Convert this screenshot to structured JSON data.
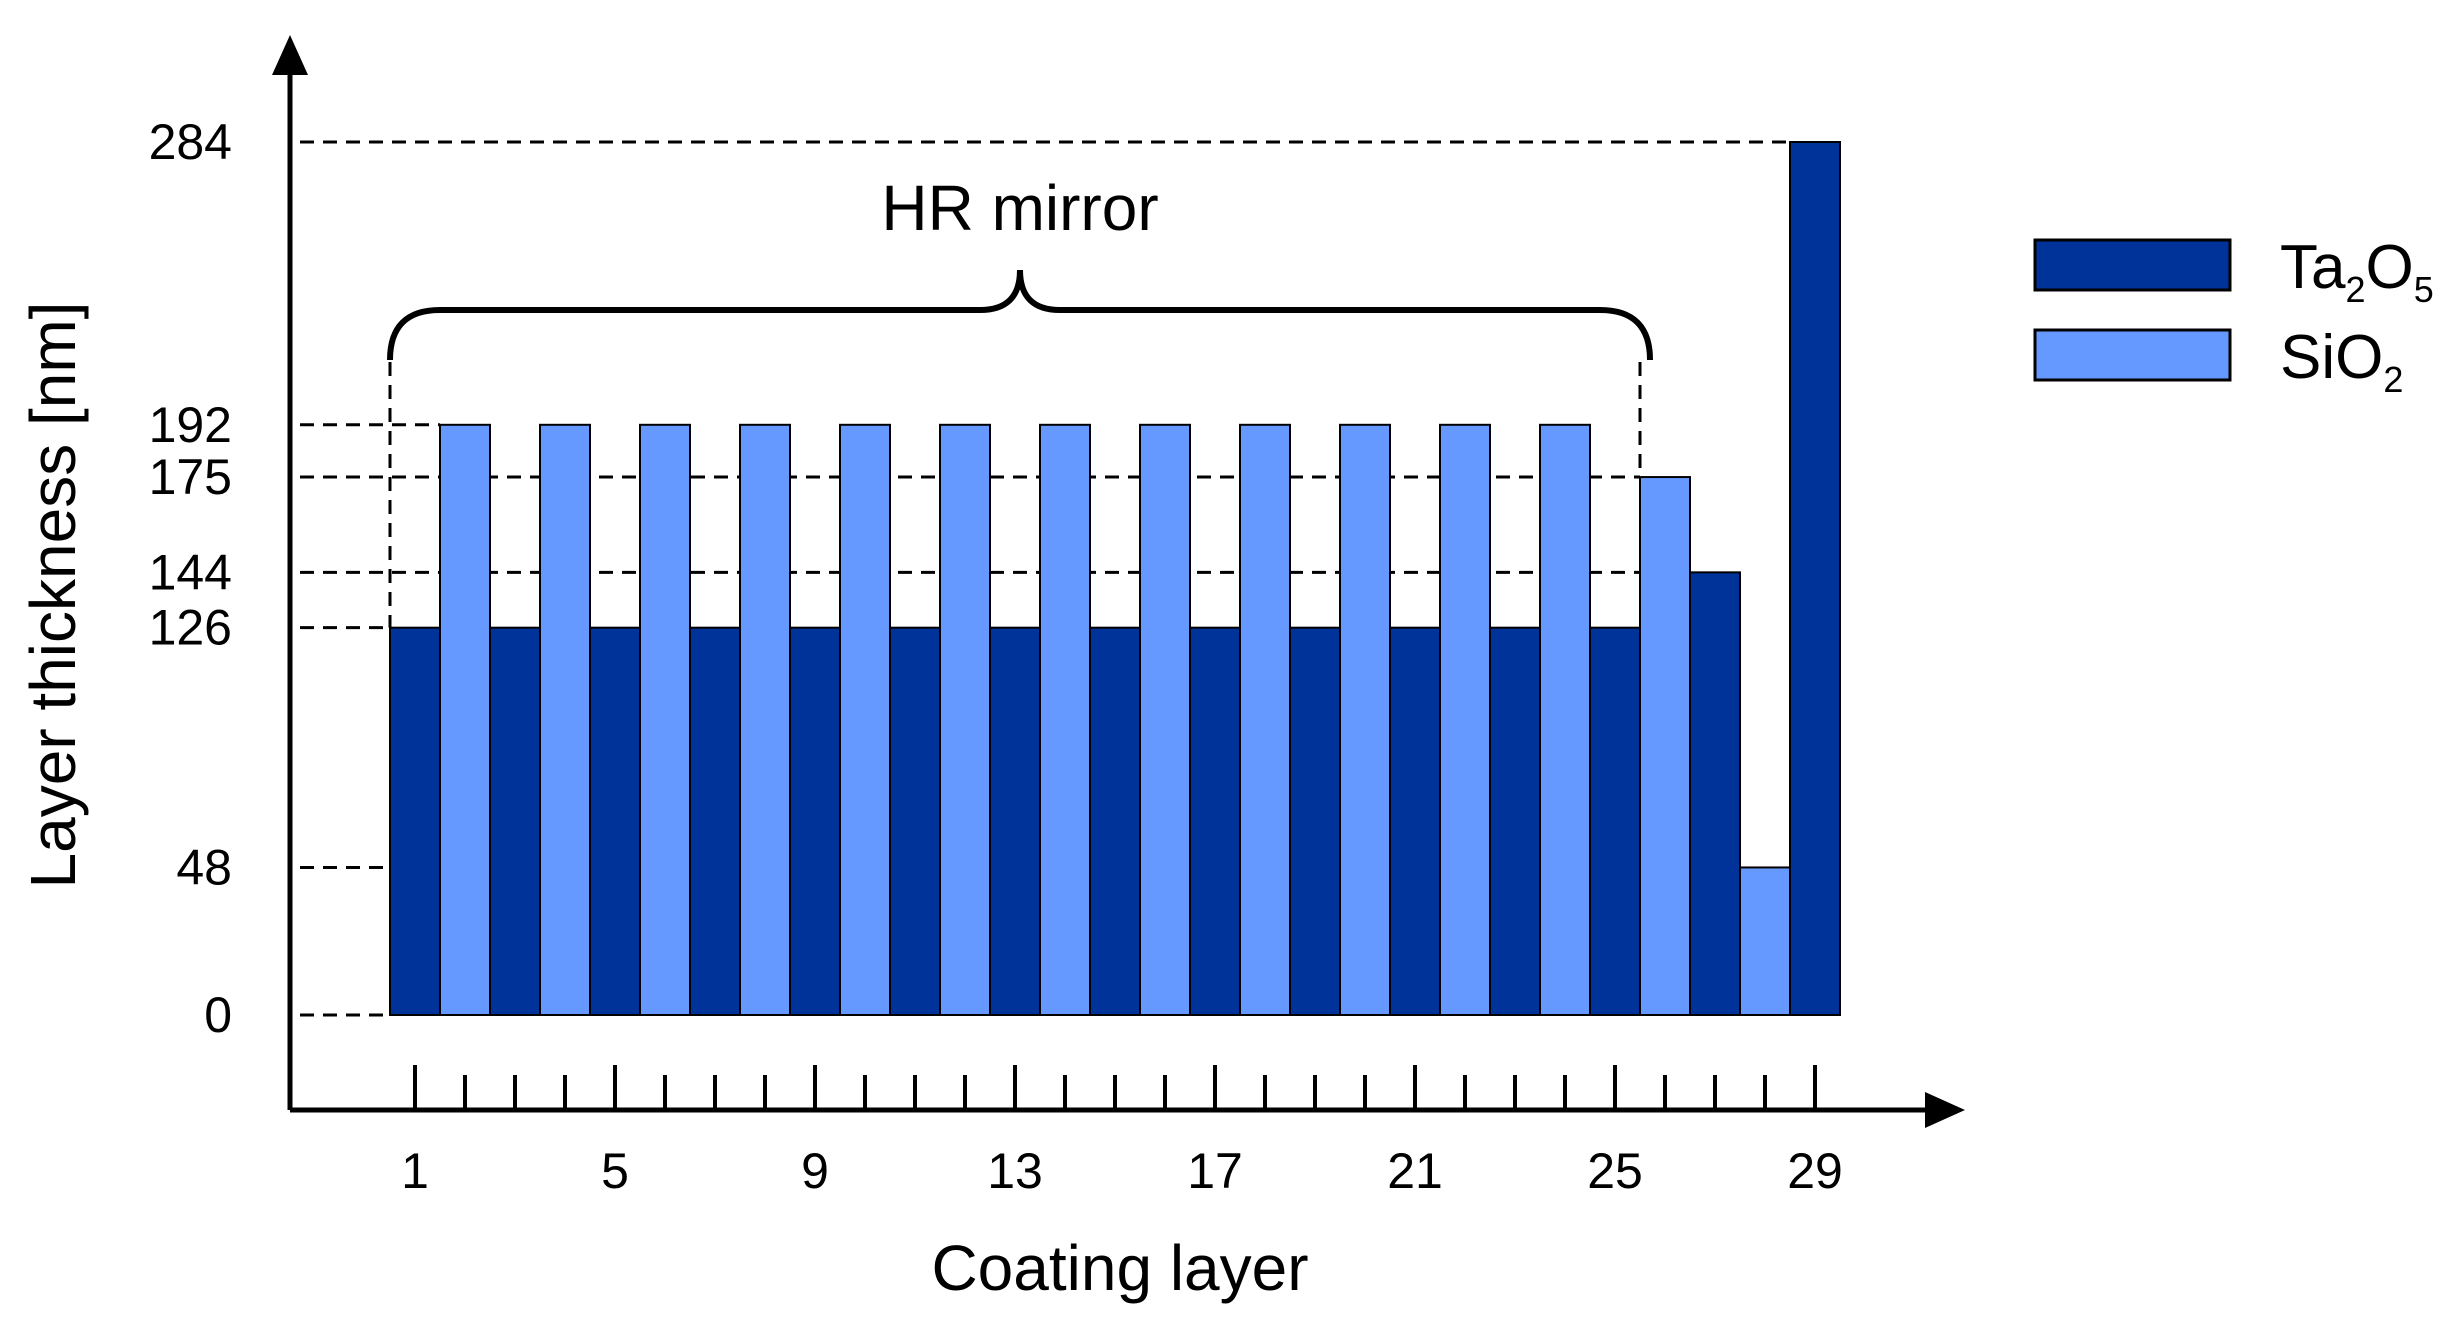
{
  "chart_data": {
    "type": "bar",
    "xlabel": "Coating layer",
    "ylabel": "Layer thickness [nm]",
    "x": [
      1,
      2,
      3,
      4,
      5,
      6,
      7,
      8,
      9,
      10,
      11,
      12,
      13,
      14,
      15,
      16,
      17,
      18,
      19,
      20,
      21,
      22,
      23,
      24,
      25,
      26,
      27,
      28,
      29
    ],
    "series": [
      {
        "name": "Ta2O5",
        "color": "#003399",
        "values": [
          126,
          null,
          126,
          null,
          126,
          null,
          126,
          null,
          126,
          null,
          126,
          null,
          126,
          null,
          126,
          null,
          126,
          null,
          126,
          null,
          126,
          null,
          126,
          null,
          126,
          null,
          144,
          null,
          284
        ]
      },
      {
        "name": "SiO2",
        "color": "#6699ff",
        "values": [
          null,
          192,
          null,
          192,
          null,
          192,
          null,
          192,
          null,
          192,
          null,
          192,
          null,
          192,
          null,
          192,
          null,
          192,
          null,
          192,
          null,
          192,
          null,
          192,
          null,
          175,
          null,
          48,
          null
        ]
      }
    ],
    "yticks": [
      "0",
      "48",
      "126",
      "144",
      "175",
      "192",
      "284"
    ],
    "xticks": [
      "1",
      "5",
      "9",
      "13",
      "17",
      "21",
      "25",
      "29"
    ],
    "ylim": [
      0,
      284
    ],
    "grid": false,
    "legend_position": "top-right",
    "legend": [
      {
        "main": "Ta",
        "sub1": "2",
        "main2": "O",
        "sub2": "5",
        "color": "#003399"
      },
      {
        "main": "SiO",
        "sub1": "2",
        "main2": "",
        "sub2": "",
        "color": "#6699ff"
      }
    ],
    "annotation": "HR mirror"
  }
}
